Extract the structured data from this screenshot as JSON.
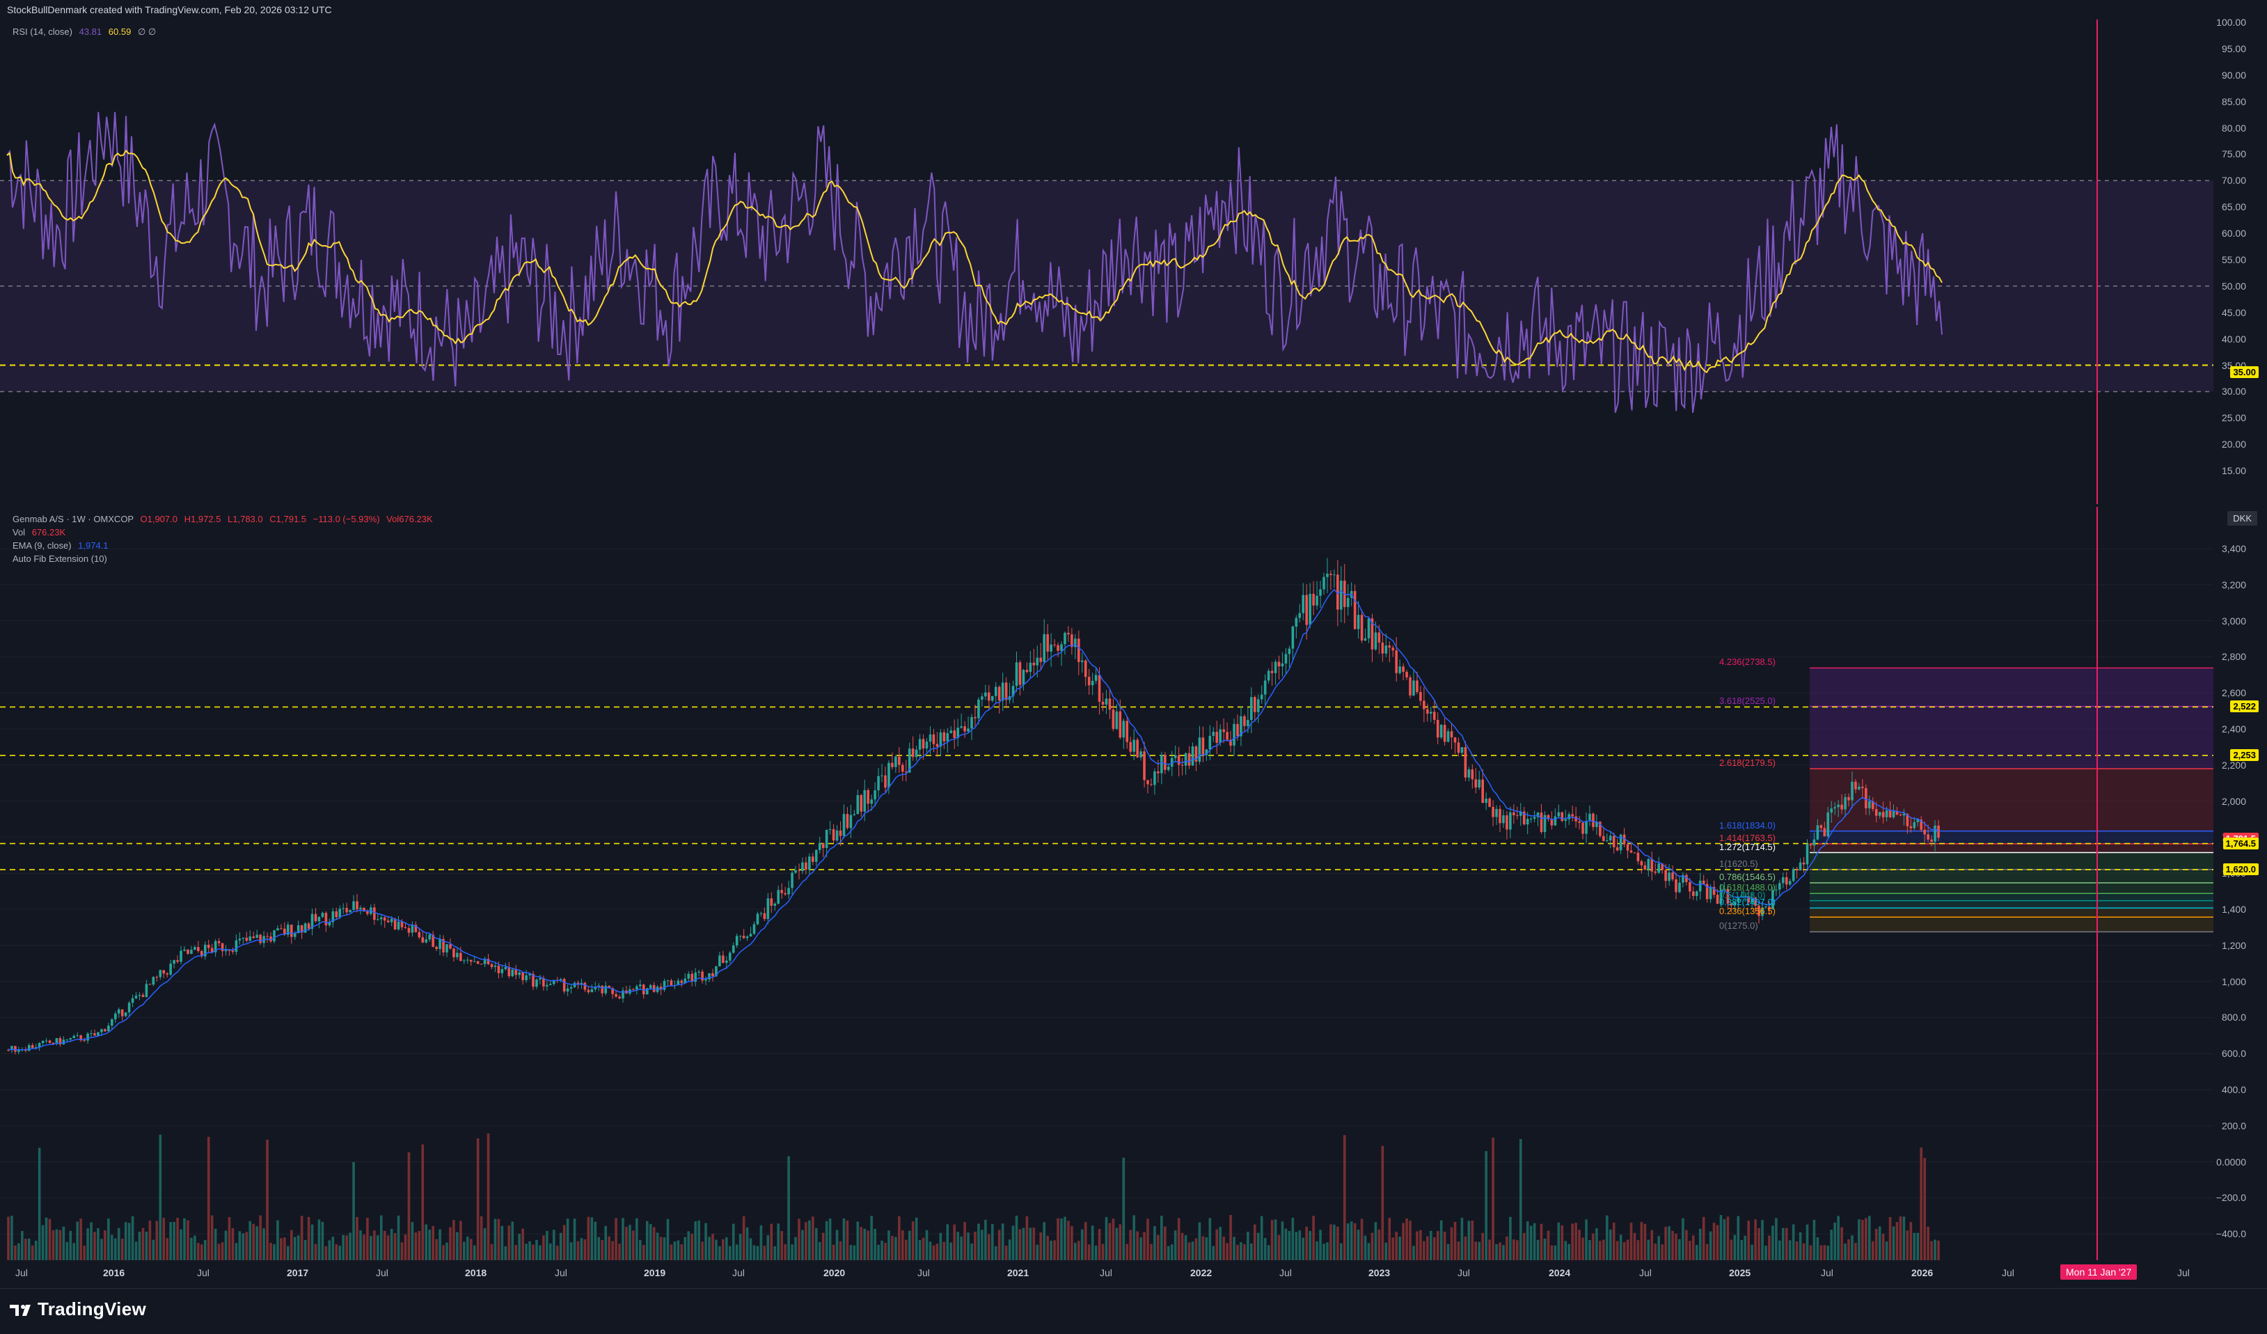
{
  "header": {
    "credit": "StockBullDenmark created with TradingView.com, Feb 20, 2026 03:12 UTC"
  },
  "rsi": {
    "label": "RSI (14, close)",
    "value1": "43.81",
    "value2": "60.59",
    "extra": "∅ ∅",
    "hline_label": "35.00",
    "axis": [
      "100.00",
      "95.00",
      "90.00",
      "85.00",
      "80.00",
      "75.00",
      "70.00",
      "65.00",
      "60.00",
      "55.00",
      "50.00",
      "45.00",
      "40.00",
      "35.00",
      "30.00",
      "25.00",
      "20.00",
      "15.00"
    ],
    "colors": {
      "rsi": "#7e57c2",
      "ma": "#fdd835",
      "band": "#2a2140"
    }
  },
  "main": {
    "symbol_line": "Genmab A/S · 1W · OMXCOP",
    "ohlc": {
      "o": "O1,907.0",
      "h": "H1,972.5",
      "l": "L1,783.0",
      "c": "C1,791.5",
      "chg": "−113.0 (−5.93%)",
      "vol": "Vol676.23K"
    },
    "vol_line": {
      "label": "Vol",
      "value": "676.23K"
    },
    "ema_line": {
      "label": "EMA (9, close)",
      "value": "1,974.1"
    },
    "fib_line": "Auto Fib Extension (10)",
    "currency": "DKK",
    "axis": [
      "3,400",
      "3,200",
      "3,000",
      "2,800",
      "2,600",
      "2,400",
      "2,200",
      "2,000",
      "1,800",
      "1,600",
      "1,400",
      "1,200",
      "1,000",
      "800.0",
      "600.0",
      "400.0",
      "200.0",
      "0.0000",
      "−200.0",
      "−400.0"
    ],
    "price_labels": [
      {
        "text": "2,522",
        "bg": "#f7e600",
        "fg": "#000000"
      },
      {
        "text": "2,253",
        "bg": "#f7e600",
        "fg": "#000000"
      },
      {
        "text": "1,791.5",
        "bg": "#f23645",
        "fg": "#ffffff"
      },
      {
        "text": "1,764.5",
        "bg": "#f7e600",
        "fg": "#000000"
      },
      {
        "text": "1,620.0",
        "bg": "#f7e600",
        "fg": "#000000"
      }
    ],
    "fib_levels": [
      {
        "label": "4.236(2738.5)",
        "color": "#e91e63"
      },
      {
        "label": "3.618(2525.0)",
        "color": "#9c27b0"
      },
      {
        "label": "2.618(2179.5)",
        "color": "#f23645"
      },
      {
        "label": "1.618(1834.0)",
        "color": "#2962ff"
      },
      {
        "label": "1.414(1763.5)",
        "color": "#f23645"
      },
      {
        "label": "1.272(1714.5)",
        "color": "#ffffff"
      },
      {
        "label": "1(1620.5)",
        "color": "#787b86"
      },
      {
        "label": "0.786(1546.5)",
        "color": "#81c784"
      },
      {
        "label": "0.618(1488.0)",
        "color": "#4caf50"
      },
      {
        "label": "0.5(1448.0)",
        "color": "#009688"
      },
      {
        "label": "0.382(1407.0)",
        "color": "#00bcd4"
      },
      {
        "label": "0.236(1356.5)",
        "color": "#ff9800"
      },
      {
        "label": "0(1275.0)",
        "color": "#787b86"
      }
    ]
  },
  "xaxis": {
    "ticks": [
      {
        "t": "Jul",
        "year": false
      },
      {
        "t": "2016",
        "year": true
      },
      {
        "t": "Jul",
        "year": false
      },
      {
        "t": "2017",
        "year": true
      },
      {
        "t": "Jul",
        "year": false
      },
      {
        "t": "2018",
        "year": true
      },
      {
        "t": "Jul",
        "year": false
      },
      {
        "t": "2019",
        "year": true
      },
      {
        "t": "Jul",
        "year": false
      },
      {
        "t": "2020",
        "year": true
      },
      {
        "t": "Jul",
        "year": false
      },
      {
        "t": "2021",
        "year": true
      },
      {
        "t": "Jul",
        "year": false
      },
      {
        "t": "2022",
        "year": true
      },
      {
        "t": "Jul",
        "year": false
      },
      {
        "t": "2023",
        "year": true
      },
      {
        "t": "Jul",
        "year": false
      },
      {
        "t": "2024",
        "year": true
      },
      {
        "t": "Jul",
        "year": false
      },
      {
        "t": "2025",
        "year": true
      },
      {
        "t": "Jul",
        "year": false
      },
      {
        "t": "2026",
        "year": true
      },
      {
        "t": "Jul",
        "year": false
      },
      {
        "t": "Jul",
        "year": false
      }
    ],
    "cursor_label": "Mon 11 Jan '27"
  },
  "footer": {
    "brand": "TradingView"
  },
  "chart_data": {
    "type": "line",
    "title": "Genmab A/S · 1W · OMXCOP",
    "x": [
      "2015-07",
      "2016-01",
      "2016-07",
      "2017-01",
      "2017-07",
      "2018-01",
      "2018-07",
      "2019-01",
      "2019-07",
      "2020-01",
      "2020-07",
      "2021-01",
      "2021-07",
      "2022-01",
      "2022-07",
      "2023-01",
      "2023-07",
      "2024-01",
      "2024-07",
      "2025-01",
      "2025-07",
      "2026-01",
      "2026-02"
    ],
    "series": [
      {
        "values": [
          620,
          700,
          1150,
          1250,
          1420,
          1180,
          1000,
          930,
          1050,
          1600,
          2150,
          2450,
          2950,
          2150,
          2400,
          3250,
          2650,
          1900,
          1880,
          1550,
          1400,
          2050,
          1791.5
        ]
      }
    ],
    "ylim": [
      -400,
      3400
    ],
    "xlabel": "",
    "ylabel": ""
  }
}
